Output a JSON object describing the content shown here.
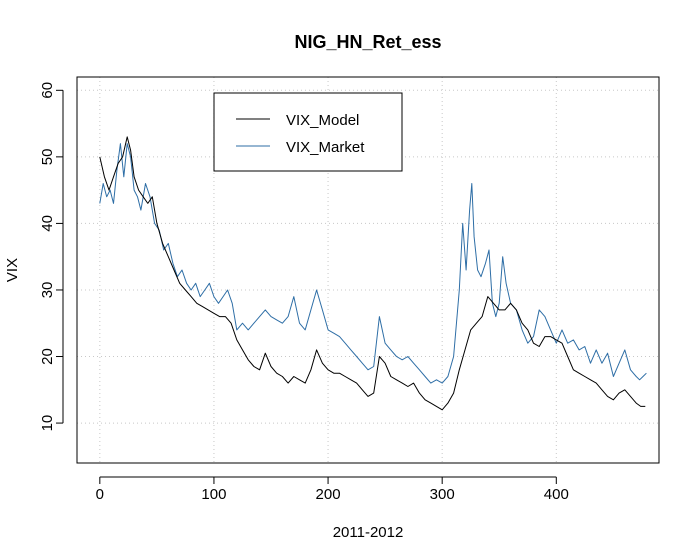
{
  "chart_data": {
    "type": "line",
    "title": "NIG_HN_Ret_ess",
    "xlabel": "2011-2012",
    "ylabel": "VIX",
    "xlim": [
      -20,
      490
    ],
    "ylim": [
      4,
      62
    ],
    "x_ticks": [
      0,
      100,
      200,
      300,
      400
    ],
    "y_ticks": [
      10,
      20,
      30,
      40,
      50,
      60
    ],
    "grid": true,
    "legend_position": "top-left",
    "series": [
      {
        "name": "VIX_Model",
        "color": "#000000",
        "points": [
          [
            0,
            50
          ],
          [
            4,
            47
          ],
          [
            8,
            45
          ],
          [
            12,
            47
          ],
          [
            16,
            49
          ],
          [
            20,
            50
          ],
          [
            24,
            53
          ],
          [
            27,
            51
          ],
          [
            30,
            47
          ],
          [
            34,
            45
          ],
          [
            38,
            44
          ],
          [
            42,
            43
          ],
          [
            46,
            44
          ],
          [
            50,
            40
          ],
          [
            55,
            37
          ],
          [
            60,
            35
          ],
          [
            65,
            33
          ],
          [
            70,
            31
          ],
          [
            75,
            30
          ],
          [
            80,
            29
          ],
          [
            85,
            28
          ],
          [
            90,
            27.5
          ],
          [
            95,
            27
          ],
          [
            100,
            26.5
          ],
          [
            105,
            26
          ],
          [
            110,
            26
          ],
          [
            115,
            25
          ],
          [
            120,
            22.5
          ],
          [
            125,
            21
          ],
          [
            130,
            19.5
          ],
          [
            135,
            18.5
          ],
          [
            140,
            18
          ],
          [
            145,
            20.5
          ],
          [
            150,
            18.5
          ],
          [
            155,
            17.5
          ],
          [
            160,
            17
          ],
          [
            165,
            16
          ],
          [
            170,
            17
          ],
          [
            175,
            16.5
          ],
          [
            180,
            16
          ],
          [
            185,
            18
          ],
          [
            190,
            21
          ],
          [
            195,
            19
          ],
          [
            200,
            18
          ],
          [
            205,
            17.5
          ],
          [
            210,
            17.5
          ],
          [
            215,
            17
          ],
          [
            220,
            16.5
          ],
          [
            225,
            16
          ],
          [
            230,
            15
          ],
          [
            235,
            14
          ],
          [
            240,
            14.5
          ],
          [
            245,
            20
          ],
          [
            250,
            19
          ],
          [
            255,
            17
          ],
          [
            260,
            16.5
          ],
          [
            265,
            16
          ],
          [
            270,
            15.5
          ],
          [
            275,
            16
          ],
          [
            280,
            14.5
          ],
          [
            285,
            13.5
          ],
          [
            290,
            13
          ],
          [
            295,
            12.5
          ],
          [
            300,
            12
          ],
          [
            305,
            13
          ],
          [
            310,
            14.5
          ],
          [
            315,
            18
          ],
          [
            320,
            21
          ],
          [
            325,
            24
          ],
          [
            330,
            25
          ],
          [
            335,
            26
          ],
          [
            340,
            29
          ],
          [
            345,
            28
          ],
          [
            350,
            27
          ],
          [
            355,
            27
          ],
          [
            360,
            28
          ],
          [
            365,
            27
          ],
          [
            370,
            25
          ],
          [
            375,
            24
          ],
          [
            380,
            22
          ],
          [
            385,
            21.5
          ],
          [
            390,
            23
          ],
          [
            395,
            23
          ],
          [
            400,
            22.5
          ],
          [
            405,
            22
          ],
          [
            410,
            20
          ],
          [
            415,
            18
          ],
          [
            420,
            17.5
          ],
          [
            425,
            17
          ],
          [
            430,
            16.5
          ],
          [
            435,
            16
          ],
          [
            440,
            15
          ],
          [
            445,
            14
          ],
          [
            450,
            13.5
          ],
          [
            455,
            14.5
          ],
          [
            460,
            15
          ],
          [
            465,
            14
          ],
          [
            470,
            13
          ],
          [
            474,
            12.5
          ],
          [
            478,
            12.5
          ]
        ]
      },
      {
        "name": "VIX_Market",
        "color": "#2e6ea6",
        "points": [
          [
            0,
            43
          ],
          [
            3,
            46
          ],
          [
            6,
            44
          ],
          [
            9,
            45
          ],
          [
            12,
            43
          ],
          [
            15,
            48
          ],
          [
            18,
            52
          ],
          [
            21,
            47
          ],
          [
            24,
            52
          ],
          [
            27,
            50
          ],
          [
            30,
            45
          ],
          [
            33,
            44
          ],
          [
            36,
            42
          ],
          [
            40,
            46
          ],
          [
            44,
            44
          ],
          [
            48,
            40
          ],
          [
            52,
            39
          ],
          [
            56,
            36
          ],
          [
            60,
            37
          ],
          [
            64,
            34
          ],
          [
            68,
            32
          ],
          [
            72,
            33
          ],
          [
            76,
            31
          ],
          [
            80,
            30
          ],
          [
            84,
            31
          ],
          [
            88,
            29
          ],
          [
            92,
            30
          ],
          [
            96,
            31
          ],
          [
            100,
            29
          ],
          [
            104,
            28
          ],
          [
            108,
            29
          ],
          [
            112,
            30
          ],
          [
            116,
            28
          ],
          [
            120,
            24
          ],
          [
            125,
            25
          ],
          [
            130,
            24
          ],
          [
            135,
            25
          ],
          [
            140,
            26
          ],
          [
            145,
            27
          ],
          [
            150,
            26
          ],
          [
            155,
            25.5
          ],
          [
            160,
            25
          ],
          [
            165,
            26
          ],
          [
            170,
            29
          ],
          [
            175,
            25
          ],
          [
            180,
            24
          ],
          [
            185,
            27
          ],
          [
            190,
            30
          ],
          [
            195,
            27
          ],
          [
            200,
            24
          ],
          [
            205,
            23.5
          ],
          [
            210,
            23
          ],
          [
            215,
            22
          ],
          [
            220,
            21
          ],
          [
            225,
            20
          ],
          [
            230,
            19
          ],
          [
            235,
            18
          ],
          [
            240,
            18.5
          ],
          [
            245,
            26
          ],
          [
            250,
            22
          ],
          [
            255,
            21
          ],
          [
            260,
            20
          ],
          [
            265,
            19.5
          ],
          [
            270,
            20
          ],
          [
            275,
            19
          ],
          [
            280,
            18
          ],
          [
            285,
            17
          ],
          [
            290,
            16
          ],
          [
            295,
            16.5
          ],
          [
            300,
            16
          ],
          [
            305,
            17
          ],
          [
            310,
            20
          ],
          [
            315,
            30
          ],
          [
            318,
            40
          ],
          [
            321,
            33
          ],
          [
            324,
            42
          ],
          [
            326,
            46
          ],
          [
            328,
            38
          ],
          [
            331,
            33
          ],
          [
            334,
            32
          ],
          [
            338,
            34
          ],
          [
            341,
            36
          ],
          [
            344,
            28
          ],
          [
            347,
            26
          ],
          [
            350,
            28
          ],
          [
            353,
            35
          ],
          [
            356,
            31
          ],
          [
            360,
            28
          ],
          [
            365,
            27
          ],
          [
            370,
            24
          ],
          [
            375,
            22
          ],
          [
            380,
            23
          ],
          [
            385,
            27
          ],
          [
            390,
            26
          ],
          [
            395,
            24
          ],
          [
            400,
            22
          ],
          [
            405,
            24
          ],
          [
            410,
            22
          ],
          [
            415,
            22.5
          ],
          [
            420,
            21
          ],
          [
            425,
            21.5
          ],
          [
            430,
            19
          ],
          [
            435,
            21
          ],
          [
            440,
            19
          ],
          [
            445,
            20.5
          ],
          [
            450,
            17
          ],
          [
            455,
            19
          ],
          [
            460,
            21
          ],
          [
            465,
            18
          ],
          [
            470,
            17
          ],
          [
            473,
            16.5
          ],
          [
            476,
            17
          ],
          [
            479,
            17.5
          ]
        ]
      }
    ]
  }
}
